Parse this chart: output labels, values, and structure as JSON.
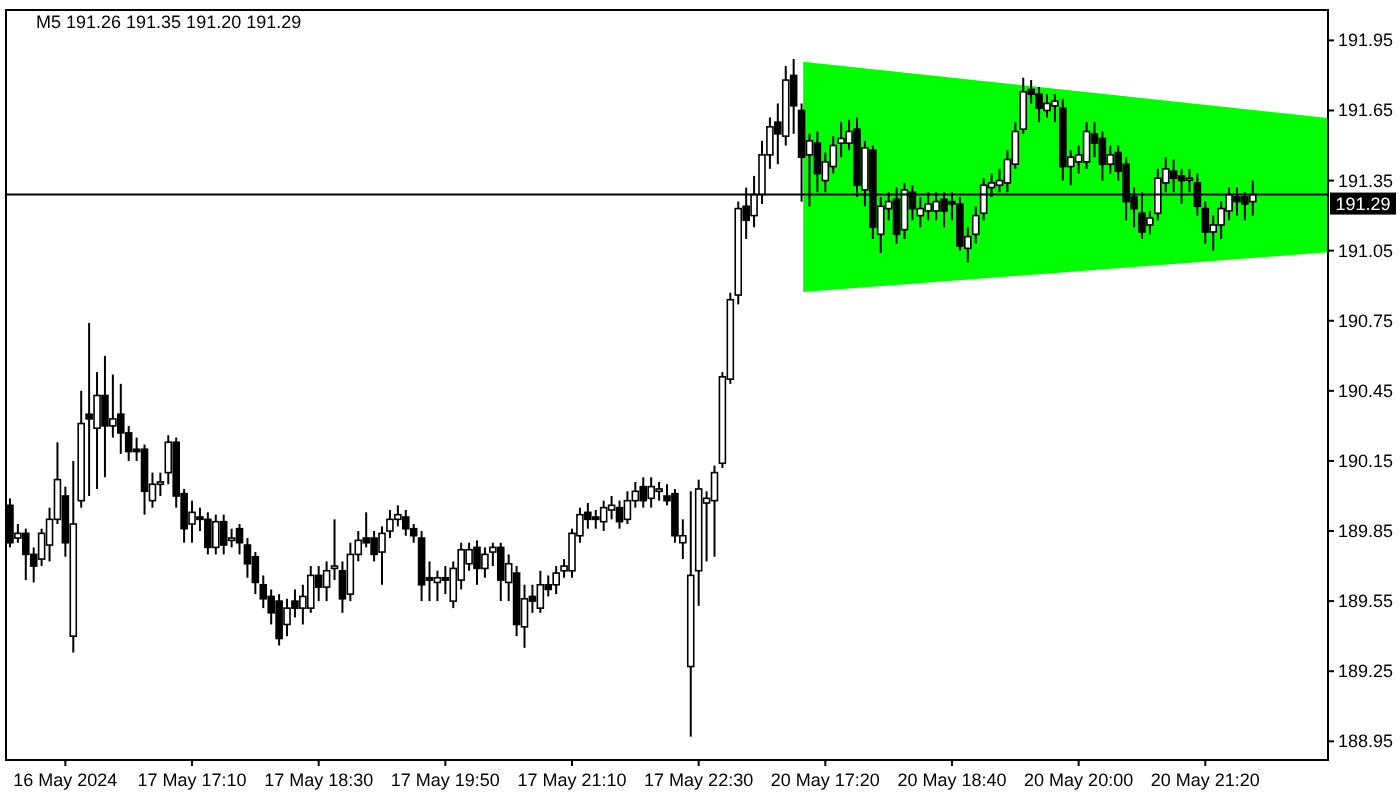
{
  "chart_data": {
    "type": "candlestick",
    "title": "M5  191.26 191.35 191.20 191.29",
    "categories": [
      null,
      null,
      null,
      null,
      null,
      null,
      null,
      "16 May 2024",
      null,
      null,
      null,
      null,
      null,
      null,
      null,
      null,
      null,
      null,
      null,
      null,
      null,
      null,
      null,
      "17 May 17:10",
      null,
      null,
      null,
      null,
      null,
      null,
      null,
      null,
      null,
      null,
      null,
      null,
      null,
      null,
      null,
      "17 May 18:30",
      null,
      null,
      null,
      null,
      null,
      null,
      null,
      null,
      null,
      null,
      null,
      null,
      null,
      null,
      null,
      "17 May 19:50",
      null,
      null,
      null,
      null,
      null,
      null,
      null,
      null,
      null,
      null,
      null,
      null,
      null,
      null,
      null,
      "17 May 21:10",
      null,
      null,
      null,
      null,
      null,
      null,
      null,
      null,
      null,
      null,
      null,
      null,
      null,
      null,
      null,
      "17 May 22:30",
      null,
      null,
      null,
      null,
      null,
      null,
      null,
      null,
      null,
      null,
      null,
      null,
      null,
      null,
      null,
      "20 May 17:20",
      null,
      null,
      null,
      null,
      null,
      null,
      null,
      null,
      null,
      null,
      null,
      null,
      null,
      null,
      null,
      "20 May 18:40",
      null,
      null,
      null,
      null,
      null,
      null,
      null,
      null,
      null,
      null,
      null,
      null,
      null,
      null,
      null,
      "20 May 20:00",
      null,
      null,
      null,
      null,
      null,
      null,
      null,
      null,
      null,
      null,
      null,
      null,
      null,
      null,
      null,
      "20 May 21:20",
      null,
      null,
      null,
      null,
      null,
      null
    ],
    "ohlc": [
      [
        189.96,
        189.99,
        189.78,
        189.8
      ],
      [
        189.82,
        189.88,
        189.8,
        189.84
      ],
      [
        189.84,
        189.86,
        189.64,
        189.75
      ],
      [
        189.75,
        189.78,
        189.63,
        189.7
      ],
      [
        189.73,
        189.86,
        189.7,
        189.84
      ],
      [
        189.79,
        189.95,
        189.72,
        189.9
      ],
      [
        189.9,
        190.23,
        189.88,
        190.07
      ],
      [
        190.0,
        190.04,
        189.74,
        189.8
      ],
      [
        189.4,
        190.15,
        189.33,
        189.88
      ],
      [
        189.98,
        190.45,
        189.95,
        190.31
      ],
      [
        190.35,
        190.74,
        190.0,
        190.33
      ],
      [
        190.29,
        190.53,
        190.03,
        190.43
      ],
      [
        190.43,
        190.6,
        190.08,
        190.3
      ],
      [
        190.3,
        190.52,
        190.25,
        190.33
      ],
      [
        190.35,
        190.48,
        190.18,
        190.27
      ],
      [
        190.27,
        190.3,
        190.15,
        190.19
      ],
      [
        190.2,
        190.25,
        190.15,
        190.19
      ],
      [
        190.2,
        190.22,
        189.92,
        190.02
      ],
      [
        189.98,
        190.1,
        189.95,
        190.05
      ],
      [
        190.05,
        190.1,
        190.0,
        190.06
      ],
      [
        190.1,
        190.26,
        190.05,
        190.23
      ],
      [
        190.23,
        190.25,
        189.95,
        190.0
      ],
      [
        190.01,
        190.03,
        189.8,
        189.86
      ],
      [
        189.88,
        189.98,
        189.8,
        189.93
      ],
      [
        189.91,
        189.95,
        189.85,
        189.9
      ],
      [
        189.9,
        189.93,
        189.75,
        189.78
      ],
      [
        189.78,
        189.92,
        189.75,
        189.89
      ],
      [
        189.89,
        189.92,
        189.75,
        189.79
      ],
      [
        189.81,
        189.86,
        189.78,
        189.82
      ],
      [
        189.86,
        189.88,
        189.75,
        189.8
      ],
      [
        189.79,
        189.82,
        189.65,
        189.71
      ],
      [
        189.74,
        189.76,
        189.58,
        189.63
      ],
      [
        189.62,
        189.66,
        189.52,
        189.56
      ],
      [
        189.57,
        189.6,
        189.45,
        189.5
      ],
      [
        189.55,
        189.58,
        189.36,
        189.39
      ],
      [
        189.45,
        189.56,
        189.4,
        189.52
      ],
      [
        189.55,
        189.6,
        189.48,
        189.52
      ],
      [
        189.52,
        189.62,
        189.45,
        189.57
      ],
      [
        189.52,
        189.7,
        189.5,
        189.66
      ],
      [
        189.66,
        189.7,
        189.55,
        189.61
      ],
      [
        189.61,
        189.72,
        189.55,
        189.68
      ],
      [
        189.69,
        189.9,
        189.64,
        189.7
      ],
      [
        189.68,
        189.72,
        189.5,
        189.56
      ],
      [
        189.58,
        189.8,
        189.55,
        189.75
      ],
      [
        189.75,
        189.85,
        189.72,
        189.81
      ],
      [
        189.82,
        189.93,
        189.78,
        189.8
      ],
      [
        189.82,
        189.85,
        189.72,
        189.75
      ],
      [
        189.76,
        189.87,
        189.62,
        189.84
      ],
      [
        189.85,
        189.94,
        189.82,
        189.9
      ],
      [
        189.9,
        189.96,
        189.87,
        189.92
      ],
      [
        189.91,
        189.94,
        189.83,
        189.86
      ],
      [
        189.86,
        189.88,
        189.8,
        189.83
      ],
      [
        189.82,
        189.85,
        189.55,
        189.62
      ],
      [
        189.65,
        189.72,
        189.55,
        189.64
      ],
      [
        189.63,
        189.68,
        189.55,
        189.65
      ],
      [
        189.65,
        189.7,
        189.58,
        189.64
      ],
      [
        189.55,
        189.72,
        189.52,
        189.69
      ],
      [
        189.64,
        189.8,
        189.6,
        189.77
      ],
      [
        189.71,
        189.8,
        189.68,
        189.77
      ],
      [
        189.78,
        189.81,
        189.62,
        189.69
      ],
      [
        189.69,
        189.78,
        189.65,
        189.75
      ],
      [
        189.76,
        189.8,
        189.7,
        189.78
      ],
      [
        189.78,
        189.8,
        189.55,
        189.64
      ],
      [
        189.63,
        189.75,
        189.55,
        189.71
      ],
      [
        189.67,
        189.7,
        189.4,
        189.45
      ],
      [
        189.44,
        189.62,
        189.35,
        189.56
      ],
      [
        189.57,
        189.62,
        189.5,
        189.55
      ],
      [
        189.52,
        189.68,
        189.5,
        189.62
      ],
      [
        189.62,
        189.66,
        189.57,
        189.6
      ],
      [
        189.62,
        189.7,
        189.58,
        189.67
      ],
      [
        189.68,
        189.73,
        189.65,
        189.7
      ],
      [
        189.68,
        189.86,
        189.65,
        189.84
      ],
      [
        189.83,
        189.95,
        189.8,
        189.92
      ],
      [
        189.93,
        189.97,
        189.86,
        189.9
      ],
      [
        189.91,
        189.94,
        189.86,
        189.9
      ],
      [
        189.89,
        189.98,
        189.85,
        189.95
      ],
      [
        189.94,
        190.0,
        189.9,
        189.96
      ],
      [
        189.95,
        189.98,
        189.86,
        189.89
      ],
      [
        189.9,
        190.02,
        189.88,
        189.98
      ],
      [
        189.98,
        190.06,
        189.95,
        190.02
      ],
      [
        190.04,
        190.08,
        189.95,
        189.98
      ],
      [
        189.99,
        190.08,
        189.95,
        190.04
      ],
      [
        190.02,
        190.06,
        189.98,
        190.03
      ],
      [
        190.0,
        190.05,
        189.96,
        189.98
      ],
      [
        190.01,
        190.03,
        189.8,
        189.83
      ],
      [
        189.8,
        189.9,
        189.73,
        189.83
      ],
      [
        189.27,
        190.02,
        188.97,
        189.66
      ],
      [
        189.68,
        190.07,
        189.53,
        190.03
      ],
      [
        189.97,
        190.02,
        189.72,
        189.99
      ],
      [
        189.98,
        190.13,
        189.74,
        190.1
      ],
      [
        190.14,
        190.53,
        190.12,
        190.51
      ],
      [
        190.5,
        190.87,
        190.48,
        190.84
      ],
      [
        190.86,
        191.26,
        190.82,
        191.23
      ],
      [
        191.24,
        191.32,
        191.1,
        191.18
      ],
      [
        191.2,
        191.37,
        191.15,
        191.29
      ],
      [
        191.29,
        191.52,
        191.25,
        191.46
      ],
      [
        191.46,
        191.62,
        191.4,
        191.58
      ],
      [
        191.6,
        191.68,
        191.42,
        191.55
      ],
      [
        191.54,
        191.84,
        191.5,
        191.78
      ],
      [
        191.8,
        191.87,
        191.55,
        191.67
      ],
      [
        191.65,
        191.68,
        191.26,
        191.45
      ],
      [
        191.46,
        191.55,
        191.24,
        191.52
      ],
      [
        191.51,
        191.56,
        191.3,
        191.38
      ],
      [
        191.35,
        191.47,
        191.3,
        191.43
      ],
      [
        191.41,
        191.54,
        191.38,
        191.5
      ],
      [
        191.51,
        191.6,
        191.45,
        191.53
      ],
      [
        191.51,
        191.61,
        191.48,
        191.56
      ],
      [
        191.57,
        191.62,
        191.28,
        191.33
      ],
      [
        191.31,
        191.52,
        191.24,
        191.49
      ],
      [
        191.48,
        191.5,
        191.1,
        191.15
      ],
      [
        191.12,
        191.28,
        191.04,
        191.24
      ],
      [
        191.23,
        191.3,
        191.18,
        191.26
      ],
      [
        191.27,
        191.32,
        191.08,
        191.12
      ],
      [
        191.14,
        191.34,
        191.1,
        191.31
      ],
      [
        191.3,
        191.33,
        191.18,
        191.23
      ],
      [
        191.2,
        191.28,
        191.15,
        191.23
      ],
      [
        191.22,
        191.3,
        191.18,
        191.25
      ],
      [
        191.22,
        191.3,
        191.18,
        191.26
      ],
      [
        191.27,
        191.3,
        191.15,
        191.22
      ],
      [
        191.26,
        191.3,
        191.18,
        191.25
      ],
      [
        191.25,
        191.28,
        191.05,
        191.07
      ],
      [
        191.06,
        191.15,
        191.0,
        191.11
      ],
      [
        191.12,
        191.24,
        191.08,
        191.2
      ],
      [
        191.21,
        191.36,
        191.18,
        191.33
      ],
      [
        191.32,
        191.38,
        191.28,
        191.34
      ],
      [
        191.33,
        191.4,
        191.3,
        191.35
      ],
      [
        191.34,
        191.48,
        191.3,
        191.44
      ],
      [
        191.42,
        191.6,
        191.4,
        191.56
      ],
      [
        191.57,
        191.79,
        191.55,
        191.73
      ],
      [
        191.74,
        191.78,
        191.68,
        191.72
      ],
      [
        191.72,
        191.75,
        191.6,
        191.66
      ],
      [
        191.65,
        191.72,
        191.62,
        191.68
      ],
      [
        191.67,
        191.72,
        191.6,
        191.69
      ],
      [
        191.66,
        191.7,
        191.35,
        191.41
      ],
      [
        191.41,
        191.48,
        191.33,
        191.45
      ],
      [
        191.43,
        191.5,
        191.38,
        191.46
      ],
      [
        191.43,
        191.6,
        191.4,
        191.56
      ],
      [
        191.55,
        191.6,
        191.45,
        191.51
      ],
      [
        191.53,
        191.56,
        191.35,
        191.42
      ],
      [
        191.42,
        191.5,
        191.38,
        191.46
      ],
      [
        191.47,
        191.5,
        191.35,
        191.39
      ],
      [
        191.42,
        191.45,
        191.18,
        191.26
      ],
      [
        191.28,
        191.32,
        191.15,
        191.23
      ],
      [
        191.21,
        191.3,
        191.1,
        191.13
      ],
      [
        191.16,
        191.22,
        191.12,
        191.19
      ],
      [
        191.21,
        191.4,
        191.18,
        191.36
      ],
      [
        191.34,
        191.45,
        191.3,
        191.4
      ],
      [
        191.39,
        191.44,
        191.3,
        191.36
      ],
      [
        191.37,
        191.4,
        191.25,
        191.35
      ],
      [
        191.36,
        191.4,
        191.3,
        191.36
      ],
      [
        191.34,
        191.38,
        191.2,
        191.24
      ],
      [
        191.23,
        191.26,
        191.08,
        191.13
      ],
      [
        191.13,
        191.2,
        191.05,
        191.16
      ],
      [
        191.16,
        191.26,
        191.1,
        191.23
      ],
      [
        191.22,
        191.32,
        191.18,
        191.29
      ],
      [
        191.28,
        191.32,
        191.2,
        191.26
      ],
      [
        191.28,
        191.3,
        191.18,
        191.25
      ],
      [
        191.26,
        191.35,
        191.2,
        191.29
      ]
    ],
    "ylim": [
      188.87,
      192.08
    ],
    "yticks": [
      188.95,
      189.25,
      189.55,
      189.85,
      190.15,
      190.45,
      190.75,
      191.05,
      191.35,
      191.65,
      191.95
    ],
    "ref_lines": [
      {
        "axis": "y",
        "value": 191.29,
        "label": "191.29"
      }
    ]
  }
}
